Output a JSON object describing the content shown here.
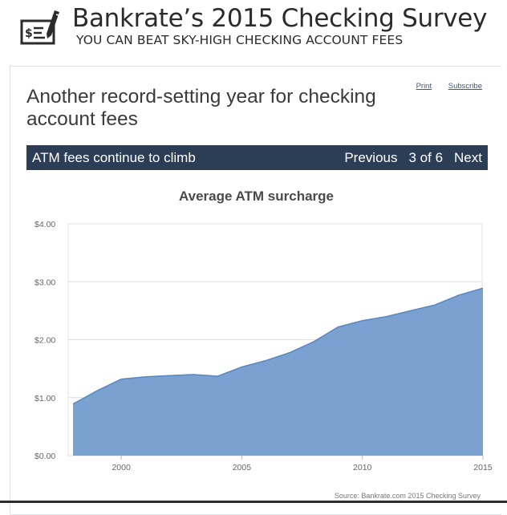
{
  "header": {
    "title": "Bankrate’s 2015 Checking Survey",
    "subtitle": "YOU CAN BEAT SKY-HIGH CHECKING ACCOUNT FEES",
    "logo_icon": "check-pen-icon"
  },
  "links": {
    "print": "Print",
    "subscribe": "Subscribe"
  },
  "page_title": "Another record-setting year for checking account fees",
  "nav": {
    "section_title": "ATM fees continue to climb",
    "previous": "Previous",
    "position": "3 of 6",
    "next": "Next"
  },
  "source": "Source: Bankrate.com 2015 Checking Survey",
  "colors": {
    "nav_bg": "#2c3e56",
    "area_fill": "#7aa1cf",
    "area_line": "#5b86bf"
  },
  "chart_data": {
    "type": "area",
    "title": "Average ATM surcharge",
    "xlabel": "",
    "ylabel": "",
    "x": [
      1998,
      1999,
      2000,
      2001,
      2002,
      2003,
      2004,
      2005,
      2006,
      2007,
      2008,
      2009,
      2010,
      2011,
      2012,
      2013,
      2014,
      2015
    ],
    "values": [
      0.89,
      1.12,
      1.32,
      1.36,
      1.38,
      1.4,
      1.37,
      1.53,
      1.64,
      1.78,
      1.97,
      2.22,
      2.33,
      2.4,
      2.5,
      2.6,
      2.77,
      2.89
    ],
    "xlim": [
      1998,
      2015
    ],
    "ylim": [
      0,
      4
    ],
    "y_ticks": [
      "$0.00",
      "$1.00",
      "$2.00",
      "$3.00",
      "$4.00"
    ],
    "y_tick_values": [
      0,
      1,
      2,
      3,
      4
    ],
    "x_ticks": [
      "2000",
      "2005",
      "2010",
      "2015"
    ],
    "x_tick_values": [
      2000,
      2005,
      2010,
      2015
    ],
    "grid": true,
    "legend": "none"
  }
}
